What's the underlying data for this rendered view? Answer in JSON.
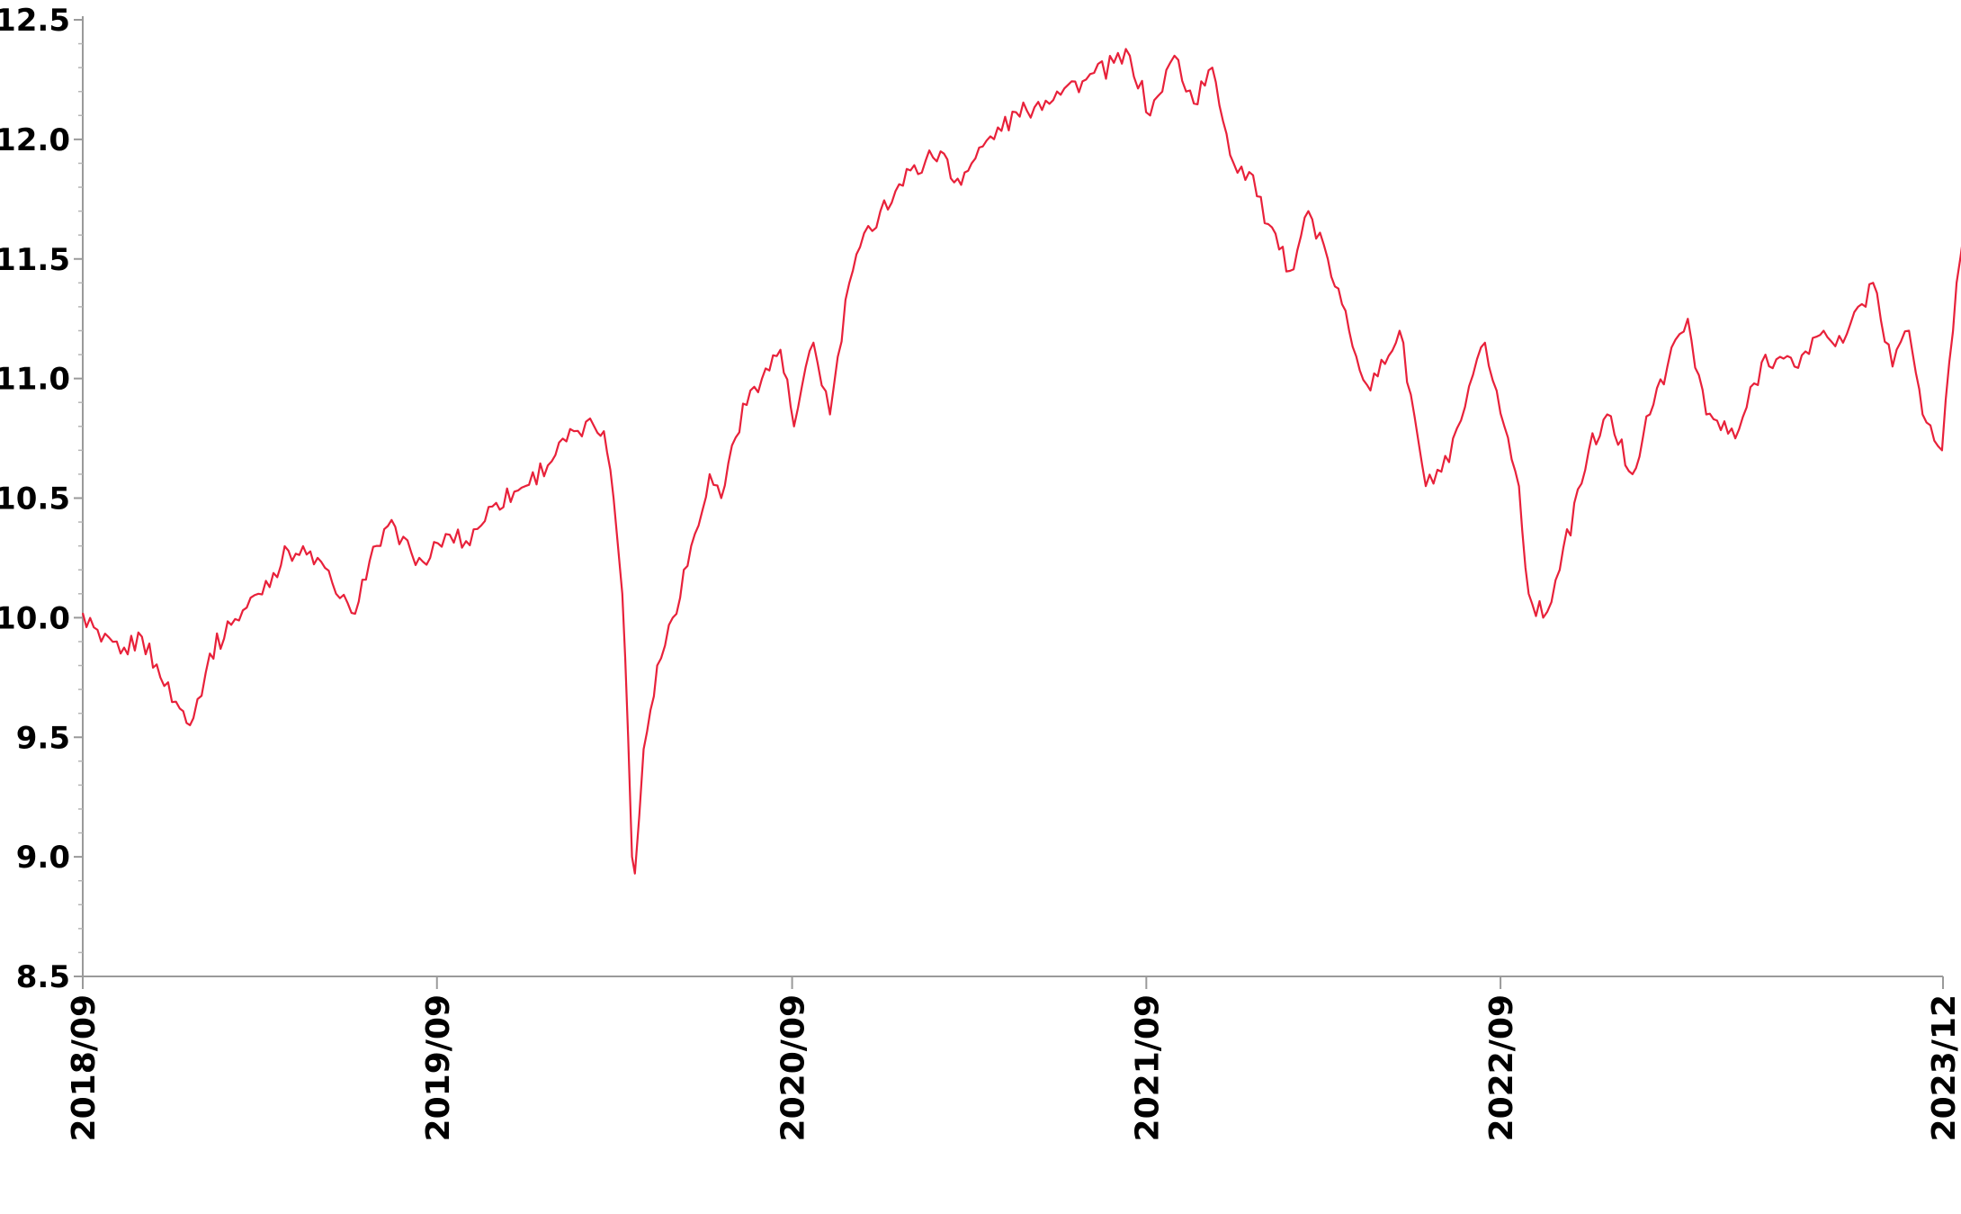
{
  "chart_data": {
    "type": "line",
    "title": "",
    "xlabel": "",
    "ylabel": "",
    "grid": false,
    "legend": "none",
    "ylim": [
      8.5,
      12.5
    ],
    "y_ticks": [
      "8.5",
      "9.0",
      "9.5",
      "10.0",
      "10.5",
      "11.0",
      "11.5",
      "12.0",
      "12.5"
    ],
    "x_range": [
      "2018/09",
      "2023/12"
    ],
    "x_tick_labels": [
      "2018/09",
      "2019/09",
      "2020/09",
      "2021/09",
      "2022/09",
      "2023/12"
    ],
    "series": [
      {
        "color": "#e8213a",
        "x": [
          "2018-09-01",
          "2018-09-20",
          "2018-10-10",
          "2018-11-01",
          "2018-11-20",
          "2018-12-10",
          "2018-12-24",
          "2019-01-10",
          "2019-02-01",
          "2019-03-01",
          "2019-04-01",
          "2019-05-01",
          "2019-05-20",
          "2019-06-05",
          "2019-07-01",
          "2019-07-20",
          "2019-08-10",
          "2019-08-25",
          "2019-09-10",
          "2019-10-01",
          "2019-11-01",
          "2019-12-01",
          "2020-01-01",
          "2020-01-20",
          "2020-02-10",
          "2020-02-20",
          "2020-03-01",
          "2020-03-10",
          "2020-03-16",
          "2020-03-20",
          "2020-03-23",
          "2020-04-01",
          "2020-04-15",
          "2020-05-01",
          "2020-05-20",
          "2020-06-08",
          "2020-06-20",
          "2020-07-01",
          "2020-07-20",
          "2020-08-01",
          "2020-08-20",
          "2020-09-03",
          "2020-09-23",
          "2020-10-10",
          "2020-10-30",
          "2020-11-10",
          "2020-12-01",
          "2021-01-01",
          "2021-02-01",
          "2021-02-15",
          "2021-03-05",
          "2021-04-01",
          "2021-05-01",
          "2021-06-01",
          "2021-07-01",
          "2021-08-15",
          "2021-09-05",
          "2021-09-30",
          "2021-10-20",
          "2021-11-08",
          "2021-11-30",
          "2021-12-20",
          "2022-01-01",
          "2022-01-27",
          "2022-02-15",
          "2022-03-07",
          "2022-03-29",
          "2022-04-20",
          "2022-05-20",
          "2022-06-16",
          "2022-07-10",
          "2022-08-16",
          "2022-09-05",
          "2022-09-20",
          "2022-09-30",
          "2022-10-15",
          "2022-11-01",
          "2022-12-01",
          "2022-12-20",
          "2023-01-15",
          "2023-02-02",
          "2023-02-20",
          "2023-03-13",
          "2023-04-01",
          "2023-05-01",
          "2023-06-01",
          "2023-07-01",
          "2023-07-31",
          "2023-08-20",
          "2023-09-20",
          "2023-10-10",
          "2023-10-27",
          "2023-11-10",
          "2023-11-30",
          "2023-12-15",
          "2023-12-31"
        ],
        "values": [
          10.02,
          9.9,
          9.85,
          9.92,
          9.75,
          9.62,
          9.58,
          9.85,
          9.97,
          10.1,
          10.28,
          10.25,
          10.1,
          10.02,
          10.3,
          10.38,
          10.22,
          10.25,
          10.35,
          10.32,
          10.48,
          10.55,
          10.68,
          10.78,
          10.8,
          10.78,
          10.5,
          10.1,
          9.5,
          9.0,
          8.93,
          9.45,
          9.8,
          10.0,
          10.3,
          10.6,
          10.5,
          10.72,
          10.95,
          11.0,
          11.12,
          10.8,
          11.15,
          10.85,
          11.4,
          11.55,
          11.7,
          11.87,
          11.95,
          11.82,
          11.9,
          12.05,
          12.12,
          12.2,
          12.25,
          12.35,
          12.1,
          12.35,
          12.15,
          12.3,
          11.9,
          11.85,
          11.65,
          11.45,
          11.7,
          11.5,
          11.2,
          10.95,
          11.2,
          10.55,
          10.65,
          11.15,
          10.8,
          10.55,
          10.1,
          10.0,
          10.2,
          10.7,
          10.85,
          10.6,
          10.85,
          11.05,
          11.25,
          10.85,
          10.75,
          11.1,
          11.05,
          11.2,
          11.15,
          11.4,
          11.05,
          11.2,
          10.85,
          10.7,
          11.4,
          11.9
        ]
      }
    ]
  }
}
